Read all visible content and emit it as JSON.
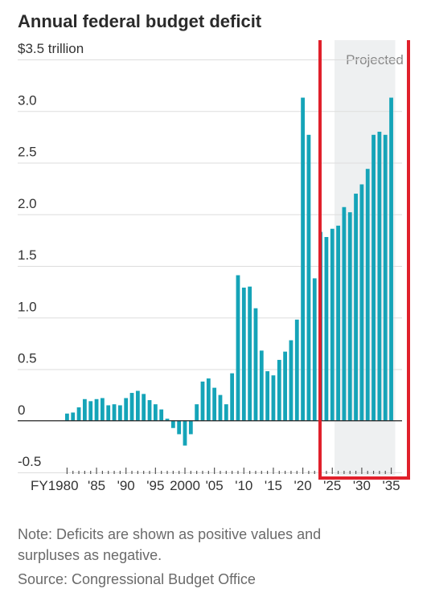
{
  "title": "Annual federal budget deficit",
  "notes": {
    "line1": "Note: Deficits are shown as positive values and",
    "line2": "surpluses as negative.",
    "source": "Source: Congressional Budget Office"
  },
  "colors": {
    "bar": "#15a4b8",
    "projected_band": "#eef0f1",
    "highlight_box": "#e0202b",
    "grid": "#dddddd",
    "zero_line": "#222222"
  },
  "chart_data": {
    "type": "bar",
    "title": "Annual federal budget deficit",
    "ylabel": "$3.5 trillion",
    "ylim": [
      -0.5,
      3.5
    ],
    "yticks": [
      {
        "value": 3.5,
        "label": "$3.5 trillion"
      },
      {
        "value": 3.0,
        "label": "3.0"
      },
      {
        "value": 2.5,
        "label": "2.5"
      },
      {
        "value": 2.0,
        "label": "2.0"
      },
      {
        "value": 1.5,
        "label": "1.5"
      },
      {
        "value": 1.0,
        "label": "1.0"
      },
      {
        "value": 0.5,
        "label": "0.5"
      },
      {
        "value": 0,
        "label": "0"
      },
      {
        "value": -0.5,
        "label": "-0.5"
      }
    ],
    "xtick_labels": [
      {
        "year": 1980,
        "label": "FY1980"
      },
      {
        "year": 1985,
        "label": "'85"
      },
      {
        "year": 1990,
        "label": "'90"
      },
      {
        "year": 1995,
        "label": "'95"
      },
      {
        "year": 2000,
        "label": "2000"
      },
      {
        "year": 2005,
        "label": "'05"
      },
      {
        "year": 2010,
        "label": "'10"
      },
      {
        "year": 2015,
        "label": "'15"
      },
      {
        "year": 2020,
        "label": "'20"
      },
      {
        "year": 2025,
        "label": "'25"
      },
      {
        "year": 2030,
        "label": "'30"
      },
      {
        "year": 2035,
        "label": "'35"
      }
    ],
    "projected_label": "Projected",
    "projected_from": 2026,
    "grid": true,
    "years": [
      1980,
      1981,
      1982,
      1983,
      1984,
      1985,
      1986,
      1987,
      1988,
      1989,
      1990,
      1991,
      1992,
      1993,
      1994,
      1995,
      1996,
      1997,
      1998,
      1999,
      2000,
      2001,
      2002,
      2003,
      2004,
      2005,
      2006,
      2007,
      2008,
      2009,
      2010,
      2011,
      2012,
      2013,
      2014,
      2015,
      2016,
      2017,
      2018,
      2019,
      2020,
      2021,
      2022,
      2023,
      2024,
      2025,
      2026,
      2027,
      2028,
      2029,
      2030,
      2031,
      2032,
      2033,
      2034,
      2035
    ],
    "values": [
      0.07,
      0.08,
      0.13,
      0.21,
      0.19,
      0.21,
      0.22,
      0.15,
      0.16,
      0.15,
      0.22,
      0.27,
      0.29,
      0.26,
      0.2,
      0.16,
      0.11,
      0.02,
      -0.07,
      -0.13,
      -0.24,
      -0.13,
      0.16,
      0.38,
      0.41,
      0.32,
      0.25,
      0.16,
      0.46,
      1.41,
      1.29,
      1.3,
      1.09,
      0.68,
      0.48,
      0.44,
      0.59,
      0.67,
      0.78,
      0.98,
      3.13,
      2.77,
      1.38,
      1.83,
      1.78,
      1.86,
      1.89,
      2.07,
      2.02,
      2.2,
      2.29,
      2.44,
      2.77,
      2.8,
      2.77,
      3.13
    ]
  }
}
